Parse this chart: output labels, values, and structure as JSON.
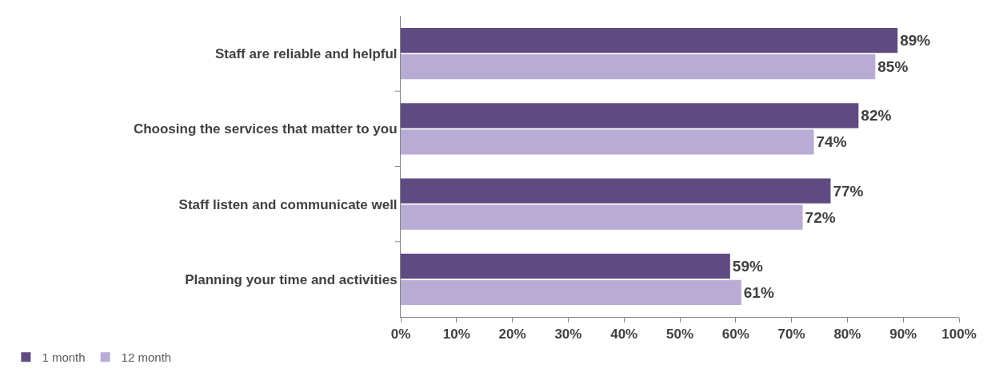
{
  "chart_data": {
    "type": "bar",
    "orientation": "horizontal",
    "categories": [
      "Staff are reliable and helpful",
      "Choosing the services that matter to you",
      "Staff listen and communicate well",
      "Planning your time and activities"
    ],
    "series": [
      {
        "name": "1 month",
        "color": "#5e4b82",
        "values": [
          89,
          82,
          77,
          59
        ],
        "value_labels": [
          "89%",
          "82%",
          "77%",
          "59%"
        ]
      },
      {
        "name": "12 month",
        "color": "#b9acd4",
        "values": [
          85,
          74,
          72,
          61
        ],
        "value_labels": [
          "85%",
          "74%",
          "72%",
          "61%"
        ]
      }
    ],
    "xlim": [
      0,
      100
    ],
    "xticks": [
      {
        "value": 0,
        "label": "0%"
      },
      {
        "value": 10,
        "label": "10%"
      },
      {
        "value": 20,
        "label": "20%"
      },
      {
        "value": 30,
        "label": "30%"
      },
      {
        "value": 40,
        "label": "40%"
      },
      {
        "value": 50,
        "label": "50%"
      },
      {
        "value": 60,
        "label": "60%"
      },
      {
        "value": 70,
        "label": "70%"
      },
      {
        "value": 80,
        "label": "80%"
      },
      {
        "value": 90,
        "label": "90%"
      },
      {
        "value": 100,
        "label": "100%"
      }
    ],
    "grid": false,
    "legend": "bottom left"
  }
}
